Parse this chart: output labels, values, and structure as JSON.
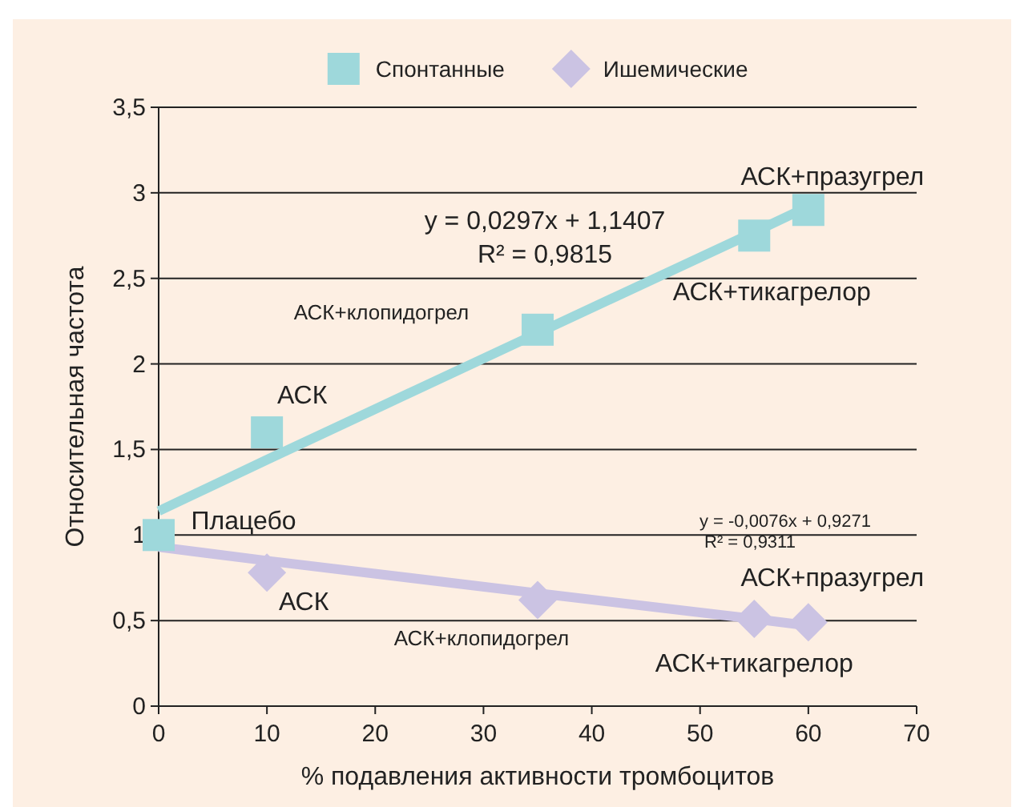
{
  "chart_data": {
    "type": "scatter",
    "xlabel": "% подавления активности тромбоцитов",
    "ylabel": "Относительная частота",
    "x": [
      0,
      10,
      35,
      55,
      60
    ],
    "series": [
      {
        "name": "Спонтанные",
        "color": "#9ed8db",
        "values": [
          1,
          1.6,
          2.2,
          2.75,
          2.9
        ],
        "marker": "square"
      },
      {
        "name": "Ишемические",
        "color": "#cbc3e3",
        "values": [
          null,
          0.78,
          0.62,
          0.51,
          0.49
        ],
        "marker": "diamond"
      },
      {
        "type": "line",
        "color": "#9ed8db",
        "values": [
          1.14,
          1.44,
          2.18,
          2.77,
          2.92
        ]
      },
      {
        "type": "line",
        "color": "#cbc3e3",
        "values": [
          0.93,
          0.85,
          0.66,
          0.51,
          0.47
        ]
      }
    ],
    "xlim": [
      0,
      70
    ],
    "xticks": [
      0,
      10,
      20,
      30,
      40,
      50,
      60,
      70
    ],
    "ylim": [
      0,
      3.5
    ],
    "yticks": [
      {
        "value": 0,
        "label": "0"
      },
      {
        "value": 0.5,
        "label": "0,5"
      },
      {
        "value": 1,
        "label": "1"
      },
      {
        "value": 1.5,
        "label": "1,5"
      },
      {
        "value": 2,
        "label": "2"
      },
      {
        "value": 2.5,
        "label": "2,5"
      },
      {
        "value": 3,
        "label": "3"
      },
      {
        "value": 3.5,
        "label": "3,5"
      }
    ],
    "grid": "y",
    "legend": "top",
    "annotations": [
      "y = 0,0297x + 1,1407",
      "R² = 0,9815",
      "y = -0,0076x + 0,9271",
      "R² = 0,9311",
      {
        "text": "Плацебо",
        "x": 0,
        "y": 1
      },
      {
        "text": "АСК",
        "x": 10,
        "y": 1.6
      },
      "АСК+клопидогрел",
      {
        "text": "АСК+тикагрелор",
        "x": 55,
        "y": 2.75
      },
      {
        "text": "АСК+празугрел",
        "x": 60,
        "y": 2.9
      },
      {
        "text": "АСК",
        "x": 10,
        "y": 0.78
      },
      {
        "text": "АСК+клопидогрел",
        "x": 35,
        "y": 0.62
      },
      {
        "text": "АСК+тикагрелор",
        "x": 55,
        "y": 0.51
      },
      {
        "text": "АСК+празугрел",
        "x": 60,
        "y": 0.49
      }
    ]
  }
}
